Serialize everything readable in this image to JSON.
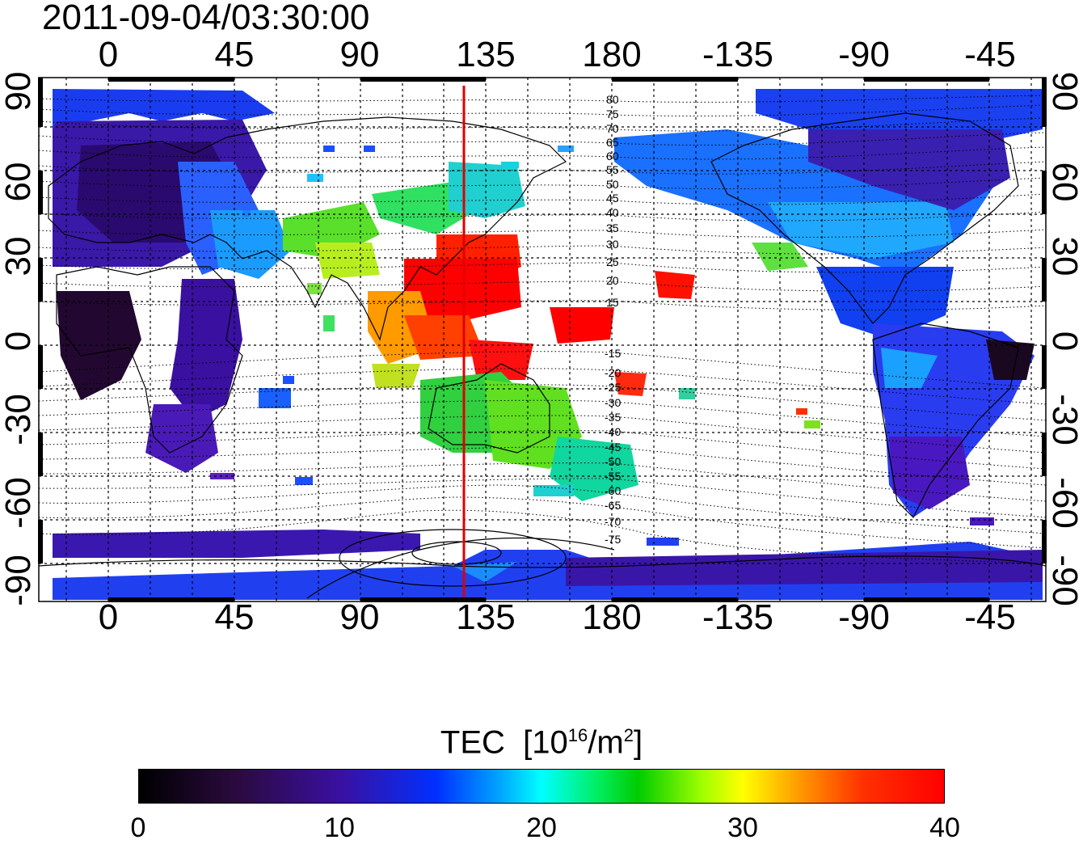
{
  "header": {
    "timestamp": "2011-09-04/03:30:00"
  },
  "map": {
    "lon_labels": [
      "0",
      "45",
      "90",
      "135",
      "180",
      "-135",
      "-90",
      "-45"
    ],
    "lat_labels": [
      "90",
      "60",
      "30",
      "0",
      "-30",
      "-60",
      "-90"
    ],
    "magnetic_lat_labels_north": [
      "80",
      "75",
      "70",
      "65",
      "60",
      "55",
      "50",
      "45",
      "40",
      "35",
      "30",
      "25",
      "20",
      "15"
    ],
    "magnetic_lat_labels_south": [
      "-15",
      "-20",
      "-25",
      "-30",
      "-35",
      "-40",
      "-45",
      "-50",
      "-55",
      "-60",
      "-65",
      "-70",
      "-75"
    ],
    "meridian_marker_color": "#e00000",
    "coastline_color": "#000000"
  },
  "colorbar": {
    "title": "TEC",
    "unit_prefix": "[10",
    "unit_exp": "16",
    "unit_mid": "/m",
    "unit_sq": "2",
    "unit_suffix": "]",
    "ticks": [
      "0",
      "10",
      "20",
      "30",
      "40"
    ],
    "colormap": [
      "#000000",
      "#3a10a0",
      "#0030ff",
      "#00ffff",
      "#00cc00",
      "#ffff00",
      "#ff9a00",
      "#ff0000"
    ]
  }
}
